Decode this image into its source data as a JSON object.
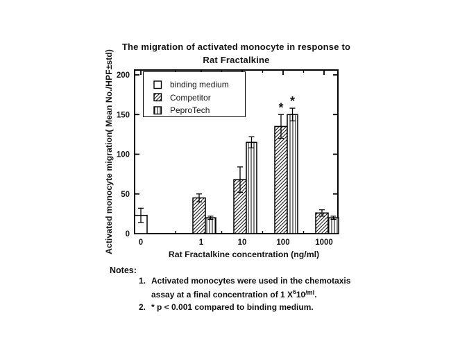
{
  "chart_data": {
    "type": "bar",
    "title": "The migration of activated monocyte in response to Rat Fractalkine",
    "title_line1": "The migration of activated monocyte in response to",
    "title_line2": "Rat Fractalkine",
    "xlabel": "Rat Fractalkine concentration (ng/ml)",
    "ylabel": "Activated monocyte migration( Mean No./HPF±std)",
    "x_scale": "log-categorical",
    "categories": [
      "0",
      "1",
      "10",
      "100",
      "1000"
    ],
    "yticks": [
      "0",
      "50",
      "100",
      "150",
      "200"
    ],
    "ylim": [
      0,
      200
    ],
    "grid": false,
    "legend_position": "top-left",
    "significance_marker": "*",
    "series": [
      {
        "name": "binding medium",
        "marker": "open-square",
        "values": [
          23,
          null,
          null,
          null,
          null
        ],
        "errors": [
          9,
          null,
          null,
          null,
          null
        ],
        "significant": [
          false,
          false,
          false,
          false,
          false
        ]
      },
      {
        "name": "Competitor",
        "marker": "diagonal-hatch-square",
        "values": [
          null,
          45,
          68,
          135,
          26
        ],
        "errors": [
          null,
          5,
          16,
          15,
          4
        ],
        "significant": [
          false,
          false,
          false,
          true,
          false
        ]
      },
      {
        "name": "PeproTech",
        "marker": "vertical-hatch-square",
        "values": [
          null,
          20,
          115,
          150,
          20
        ],
        "errors": [
          null,
          2,
          7,
          8,
          2
        ],
        "significant": [
          false,
          false,
          false,
          true,
          false
        ]
      }
    ]
  },
  "notes": {
    "heading": "Notes:",
    "item1_num": "1.",
    "item1_line1": "Activated monocytes were used in the chemotaxis",
    "item1_line2": {
      "pre": "assay at a final concentration of 1 X",
      "sup1": "6",
      "mid": "10",
      "sup2": "/ml",
      "end": "."
    },
    "item2_num": "2.",
    "item2_text": "* p < 0.001 compared to binding medium."
  },
  "colors": {
    "foreground": "#000000",
    "background": "#ffffff",
    "text": "#141414"
  }
}
